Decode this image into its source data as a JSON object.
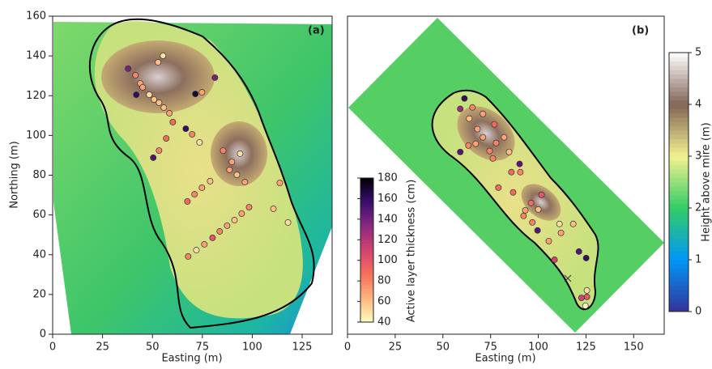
{
  "chart_data": [
    {
      "type": "scatter",
      "label": "(a)",
      "xlabel": "Easting (m)",
      "ylabel": "Northing (m)",
      "xlim": [
        0,
        140
      ],
      "ylim": [
        0,
        160
      ],
      "xticks": [
        0,
        25,
        50,
        75,
        100,
        125
      ],
      "yticks": [
        0,
        20,
        40,
        60,
        80,
        100,
        120,
        140,
        160
      ],
      "x": [
        37.8,
        41.5,
        43.9,
        45.1,
        41.9,
        48.4,
        50.8,
        53.3,
        55.7,
        58.5,
        60.2,
        56.9,
        53.3,
        50.4,
        55.3,
        52.8,
        66.7,
        69.9,
        73.6,
        71.5,
        74.8,
        81.3,
        85.4,
        89.8,
        93.9,
        88.6,
        92.3,
        96.3,
        113.8,
        110.6,
        117.9,
        67.5,
        71.1,
        74.8,
        78.9,
        67.9,
        72.0,
        76.0,
        80.1,
        83.7,
        87.4,
        91.1,
        94.7,
        98.4
      ],
      "y": [
        133.6,
        130.3,
        126.2,
        124.2,
        120.5,
        120.5,
        118.1,
        116.5,
        114.0,
        111.2,
        106.7,
        98.5,
        92.4,
        88.8,
        140.1,
        136.8,
        103.4,
        100.6,
        96.5,
        120.9,
        121.7,
        129.1,
        92.4,
        86.7,
        90.8,
        82.7,
        80.2,
        76.5,
        76.1,
        63.1,
        56.2,
        66.8,
        70.4,
        73.7,
        77.0,
        39.1,
        42.3,
        45.2,
        48.5,
        51.7,
        54.6,
        57.4,
        60.7,
        63.9
      ],
      "values": [
        140,
        80,
        70,
        70,
        160,
        50,
        60,
        60,
        60,
        70,
        90,
        90,
        80,
        150,
        50,
        60,
        160,
        80,
        50,
        170,
        70,
        140,
        80,
        70,
        50,
        70,
        60,
        70,
        70,
        60,
        50,
        90,
        80,
        70,
        60,
        80,
        50,
        70,
        100,
        80,
        70,
        60,
        70,
        80
      ]
    },
    {
      "type": "scatter",
      "label": "(b)",
      "xlabel": "Easting (m)",
      "xlim": [
        0,
        166
      ],
      "ylim": [
        0,
        167
      ],
      "xticks": [
        0,
        25,
        50,
        75,
        100,
        125,
        150
      ],
      "x": [
        61.3,
        65.5,
        59.1,
        71.0,
        63.8,
        77.0,
        68.1,
        71.0,
        63.4,
        59.1,
        67.2,
        74.5,
        77.9,
        82.1,
        84.7,
        76.2,
        90.2,
        85.9,
        90.6,
        79.1,
        86.8,
        101.7,
        96.2,
        93.2,
        100.0,
        92.3,
        96.9,
        99.6,
        111.1,
        118.3,
        105.5,
        111.9,
        108.5,
        121.3,
        125.1,
        125.5,
        125.5,
        122.6,
        124.7
      ],
      "y": [
        123.8,
        119.1,
        118.3,
        115.7,
        113.2,
        110.2,
        107.7,
        103.4,
        99.1,
        95.7,
        100.0,
        96.2,
        100.4,
        103.4,
        95.7,
        92.3,
        89.4,
        85.1,
        85.1,
        77.0,
        74.5,
        73.2,
        68.9,
        65.1,
        65.5,
        62.1,
        58.7,
        54.5,
        57.9,
        57.9,
        48.9,
        53.2,
        39.1,
        43.4,
        40.0,
        23.0,
        19.6,
        19.1,
        14.9
      ],
      "values": [
        160,
        80,
        130,
        70,
        60,
        90,
        70,
        70,
        80,
        150,
        70,
        80,
        80,
        70,
        60,
        80,
        150,
        90,
        80,
        90,
        90,
        100,
        90,
        70,
        60,
        80,
        80,
        150,
        50,
        60,
        70,
        70,
        110,
        150,
        160,
        50,
        100,
        110,
        40
      ],
      "colorbars": [
        {
          "label": "Active layer thickness (cm)",
          "lim": [
            40,
            180
          ],
          "ticks": [
            40,
            60,
            80,
            100,
            120,
            140,
            160,
            180
          ],
          "colors": [
            "#fcfdbf",
            "#fdb57e",
            "#f6705c",
            "#d3436e",
            "#8c2981",
            "#3b0f70",
            "#000004"
          ]
        },
        {
          "label": "Height above mire (m)",
          "lim": [
            0,
            5
          ],
          "ticks": [
            0,
            1,
            2,
            3,
            4,
            5
          ],
          "colors": [
            "#333399",
            "#0196f8",
            "#33cc66",
            "#f3f18f",
            "#836457",
            "#ffffff"
          ]
        }
      ]
    }
  ]
}
